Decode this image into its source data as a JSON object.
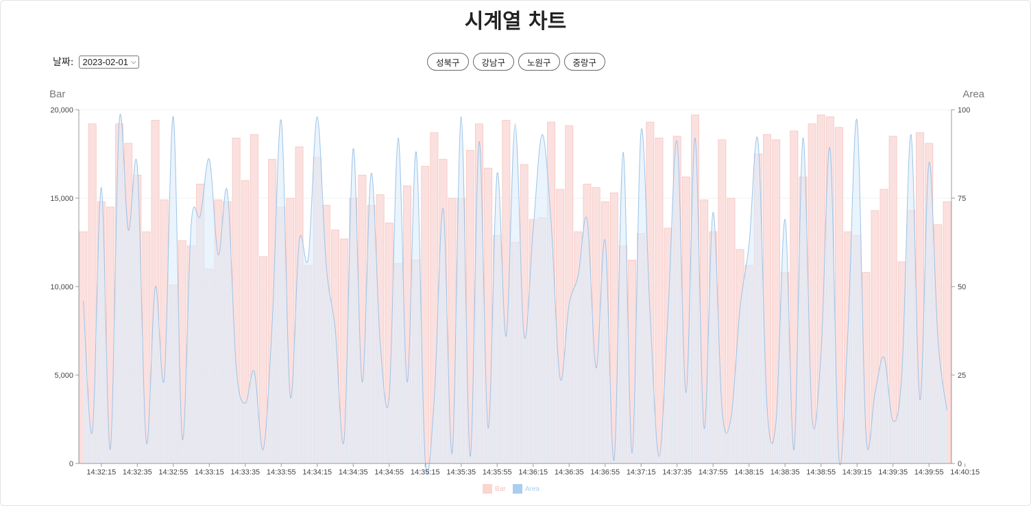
{
  "title": "시계열 차트",
  "date_filter": {
    "label": "날짜:",
    "value": "2023-02-01"
  },
  "district_buttons": [
    "성북구",
    "강남구",
    "노원구",
    "중랑구"
  ],
  "colors": {
    "bar_fill": "#fbe0e0",
    "bar_stroke": "#f6c6bd",
    "area_fill": "#dcecfb",
    "area_stroke": "#9cc3e6"
  },
  "chart_data": {
    "type": "bar",
    "left_axis": {
      "label": "Bar",
      "ticks": [
        "0",
        "5,000",
        "10,000",
        "15,000",
        "20,000"
      ],
      "range": [
        0,
        20000
      ]
    },
    "right_axis": {
      "label": "Area",
      "ticks": [
        "0",
        "25",
        "50",
        "75",
        "100"
      ],
      "range": [
        0,
        100
      ]
    },
    "x_tick_labels": [
      "14:32:15",
      "14:32:35",
      "14:32:55",
      "14:33:15",
      "14:33:35",
      "14:33:55",
      "14:34:15",
      "14:34:35",
      "14:34:55",
      "14:35:15",
      "14:35:35",
      "14:35:55",
      "14:36:15",
      "14:36:35",
      "14:36:55",
      "14:37:15",
      "14:37:35",
      "14:37:55",
      "14:38:15",
      "14:38:35",
      "14:38:55",
      "14:39:15",
      "14:39:35",
      "14:39:55",
      "14:40:15"
    ],
    "x_start": "14:32:05",
    "x_step_seconds": 5,
    "bar_values": [
      13100,
      19200,
      14800,
      14500,
      19200,
      18100,
      16300,
      13100,
      19400,
      14900,
      10100,
      12600,
      12300,
      15800,
      11000,
      14900,
      14800,
      18400,
      16000,
      18600,
      11700,
      17200,
      14500,
      15000,
      17900,
      11200,
      17300,
      14600,
      13200,
      12700,
      15000,
      16300,
      14600,
      15200,
      13600,
      11300,
      15700,
      11500,
      16800,
      18700,
      17200,
      15000,
      15000,
      17700,
      19200,
      16700,
      12900,
      19400,
      12500,
      16900,
      13800,
      13900,
      19300,
      15500,
      19100,
      13100,
      15800,
      15600,
      14800,
      15300,
      12300,
      11500,
      13000,
      19300,
      18400,
      13300,
      18500,
      16200,
      19700,
      14900,
      13100,
      18300,
      15000,
      12100,
      11200,
      17500,
      18600,
      18300,
      10800,
      18800,
      16200,
      19200,
      19700,
      19600,
      19000,
      13100,
      12900,
      10800,
      14300,
      15500,
      18500,
      11400,
      14300,
      18700,
      18100,
      13500,
      14800
    ],
    "area_values": [
      46,
      9,
      78,
      4,
      97,
      66,
      84,
      6,
      50,
      24,
      98,
      7,
      68,
      70,
      86,
      59,
      77,
      27,
      17,
      26,
      4,
      40,
      97,
      19,
      63,
      58,
      98,
      56,
      38,
      7,
      89,
      23,
      82,
      34,
      19,
      92,
      23,
      88,
      1,
      18,
      72,
      3,
      98,
      2,
      91,
      10,
      82,
      36,
      96,
      36,
      66,
      93,
      68,
      24,
      45,
      53,
      69,
      27,
      63,
      1,
      88,
      3,
      94,
      42,
      2,
      43,
      91,
      20,
      92,
      10,
      71,
      15,
      13,
      44,
      62,
      91,
      16,
      12,
      69,
      4,
      92,
      13,
      31,
      89,
      1,
      38,
      97,
      8,
      20,
      30,
      12,
      26,
      93,
      18,
      85,
      35,
      15
    ],
    "legend": [
      {
        "label": "Bar",
        "color": "#fbd5cf"
      },
      {
        "label": "Area",
        "color": "#a9cef0"
      }
    ],
    "grid": true,
    "legend_position": "bottom"
  }
}
